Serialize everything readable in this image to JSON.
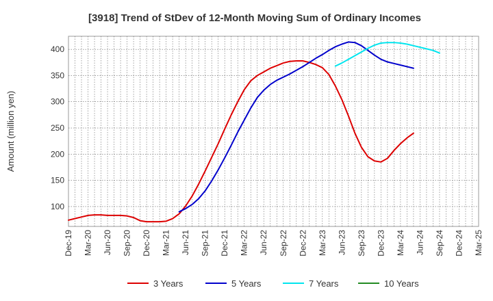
{
  "chart_data": {
    "type": "line",
    "title": "[3918]  Trend of StDev of 12-Month Moving Sum of Ordinary Incomes",
    "xlabel": "",
    "ylabel": "Amount (million yen)",
    "x_ticks": [
      "Dec-19",
      "Mar-20",
      "Jun-20",
      "Sep-20",
      "Dec-20",
      "Mar-21",
      "Jun-21",
      "Sep-21",
      "Dec-21",
      "Mar-22",
      "Jun-22",
      "Sep-22",
      "Dec-22",
      "Mar-23",
      "Jun-23",
      "Sep-23",
      "Dec-23",
      "Mar-24",
      "Jun-24",
      "Sep-24",
      "Dec-24",
      "Mar-25"
    ],
    "y_ticks": [
      100,
      150,
      200,
      250,
      300,
      350,
      400
    ],
    "ylim": [
      62,
      425
    ],
    "grid": true,
    "legend_position": "bottom",
    "series": [
      {
        "name": "3 Years",
        "color": "#dd0000",
        "start": "Dec-19",
        "values": [
          74,
          77,
          80,
          83,
          84,
          84,
          83,
          83,
          83,
          82,
          79,
          73,
          71,
          71,
          71,
          72,
          77,
          86,
          101,
          120,
          143,
          168,
          194,
          220,
          248,
          275,
          300,
          323,
          340,
          350,
          357,
          364,
          369,
          374,
          377,
          378,
          378,
          375,
          371,
          365,
          352,
          330,
          304,
          273,
          240,
          213,
          195,
          187,
          185,
          192,
          207,
          220,
          231,
          240
        ]
      },
      {
        "name": "5 Years",
        "color": "#0000cc",
        "start": "May-21",
        "values": [
          90,
          96,
          104,
          115,
          130,
          149,
          170,
          193,
          217,
          242,
          265,
          288,
          308,
          322,
          333,
          341,
          347,
          353,
          360,
          367,
          375,
          383,
          390,
          398,
          405,
          410,
          414,
          413,
          407,
          398,
          389,
          381,
          376,
          373,
          370,
          367,
          364
        ]
      },
      {
        "name": "7 Years",
        "color": "#00e5ee",
        "start": "May-23",
        "values": [
          368,
          374,
          381,
          388,
          395,
          402,
          408,
          412,
          413,
          413,
          412,
          410,
          407,
          404,
          401,
          398,
          393
        ]
      },
      {
        "name": "10 Years",
        "color": "#228B22",
        "start": "",
        "values": []
      }
    ]
  }
}
